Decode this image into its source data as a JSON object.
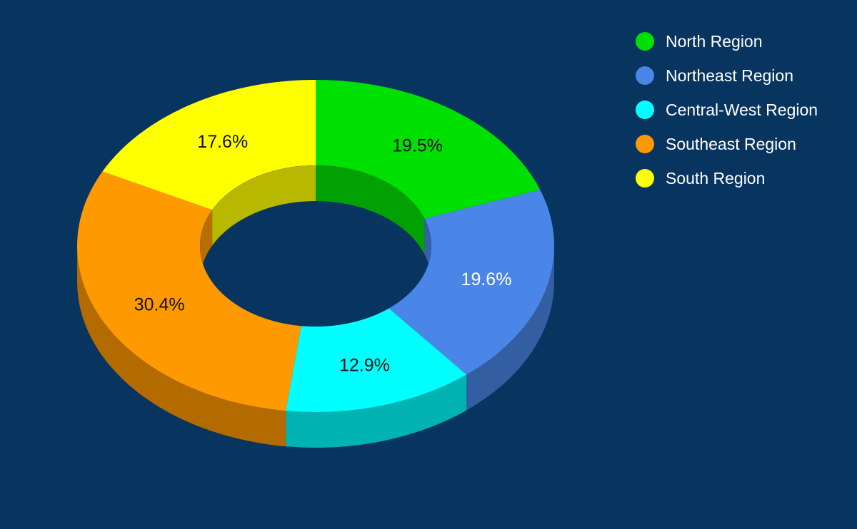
{
  "chart_data": {
    "type": "pie",
    "title": "",
    "legend_position": "top-right",
    "labels": [
      "North Region",
      "Northeast Region",
      "Central-West Region",
      "Southeast Region",
      "South Region"
    ],
    "values": [
      19.5,
      19.6,
      12.9,
      30.4,
      17.6
    ],
    "value_labels": [
      "19.5%",
      "19.6%",
      "12.9%",
      "30.4%",
      "17.6%"
    ],
    "colors": [
      "#00e000",
      "#4a86e8",
      "#00ffff",
      "#ff9900",
      "#ffff00"
    ],
    "label_colors": [
      "#111111",
      "#ffffff",
      "#111111",
      "#111111",
      "#111111"
    ],
    "background": "#083560"
  }
}
